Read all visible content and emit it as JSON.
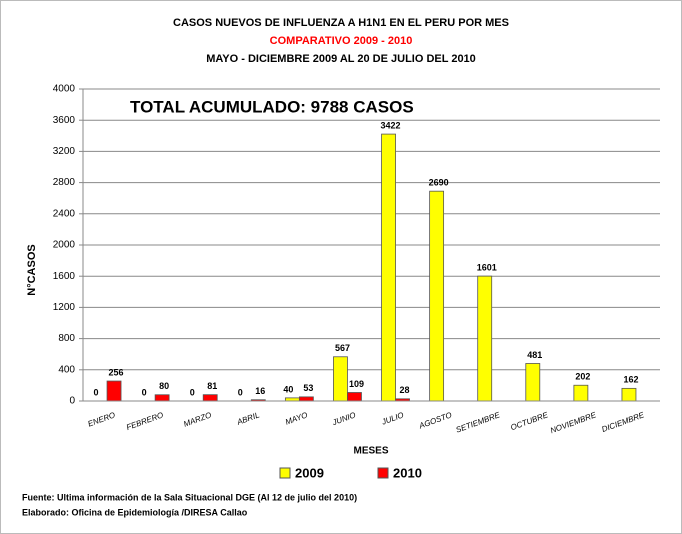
{
  "chart_data": {
    "type": "bar",
    "title": "CASOS NUEVOS DE INFLUENZA A H1N1 EN EL PERU POR MES",
    "subtitle": "COMPARATIVO  2009 - 2010",
    "subtitle2": "MAYO -  DICIEMBRE 2009  AL 20  DE JULIO DEL 2010",
    "annotation": "TOTAL ACUMULADO: 9788 CASOS",
    "y_label": "N°CASOS",
    "x_label": "MESES",
    "categories": [
      "ENERO",
      "FEBRERO",
      "MARZO",
      "ABRIL",
      "MAYO",
      "JUNIO",
      "JULIO",
      "AGOSTO",
      "SETIEMBRE",
      "OCTUBRE",
      "NOVIEMBRE",
      "DICIEMBRE"
    ],
    "series": [
      {
        "name": "2009",
        "color": "#ffff00",
        "values": [
          0,
          0,
          0,
          0,
          40,
          567,
          3422,
          2690,
          1601,
          481,
          202,
          162
        ]
      },
      {
        "name": "2010",
        "color": "#ff0000",
        "values": [
          256,
          80,
          81,
          16,
          53,
          109,
          28,
          null,
          null,
          null,
          null,
          null
        ]
      }
    ],
    "ylim": [
      0,
      4000
    ],
    "yticks": [
      0,
      400,
      800,
      1200,
      1600,
      2000,
      2400,
      2800,
      3200,
      3600,
      4000
    ],
    "grid": true,
    "legend": "bottom",
    "notes": [
      "Fuente: Ultima información de la Sala Situacional DGE (Al 12 de julio del 2010)",
      "Elaborado: Oficina de Epidemiología /DIRESA Callao"
    ]
  }
}
